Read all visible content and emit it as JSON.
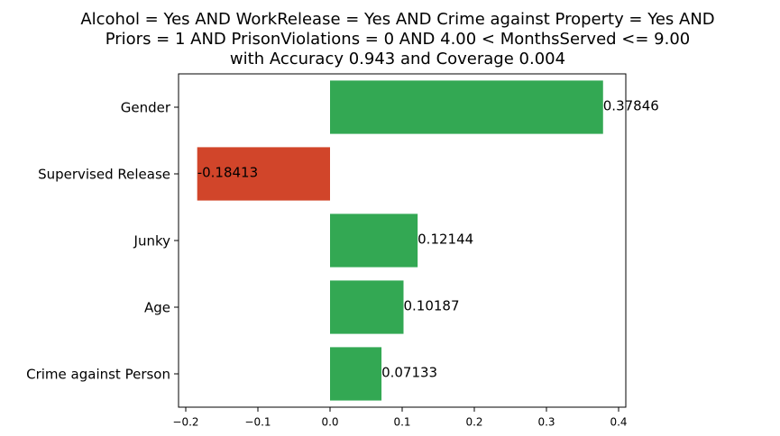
{
  "chart_data": {
    "type": "bar",
    "orientation": "horizontal",
    "title": [
      "Alcohol = Yes AND WorkRelease = Yes AND Crime against Property = Yes AND",
      "Priors = 1 AND PrisonViolations = 0 AND 4.00 < MonthsServed <= 9.00",
      "with Accuracy 0.943 and Coverage 0.004"
    ],
    "categories": [
      "Gender",
      "Supervised Release",
      "Junky",
      "Age",
      "Crime against Person"
    ],
    "values": [
      0.37846,
      -0.18413,
      0.12144,
      0.10187,
      0.07133
    ],
    "value_labels": [
      "0.37846",
      "-0.18413",
      "0.12144",
      "0.10187",
      "0.07133"
    ],
    "xticks": [
      -0.2,
      -0.1,
      0.0,
      0.1,
      0.2,
      0.3,
      0.4
    ],
    "xtick_labels": [
      "−0.2",
      "−0.1",
      "0.0",
      "0.1",
      "0.2",
      "0.3",
      "0.4"
    ],
    "xlim": [
      -0.21,
      0.41
    ],
    "xlabel": "",
    "ylabel": "",
    "grid": false,
    "colors": {
      "positive": "#33a853",
      "negative": "#d1452a"
    }
  }
}
